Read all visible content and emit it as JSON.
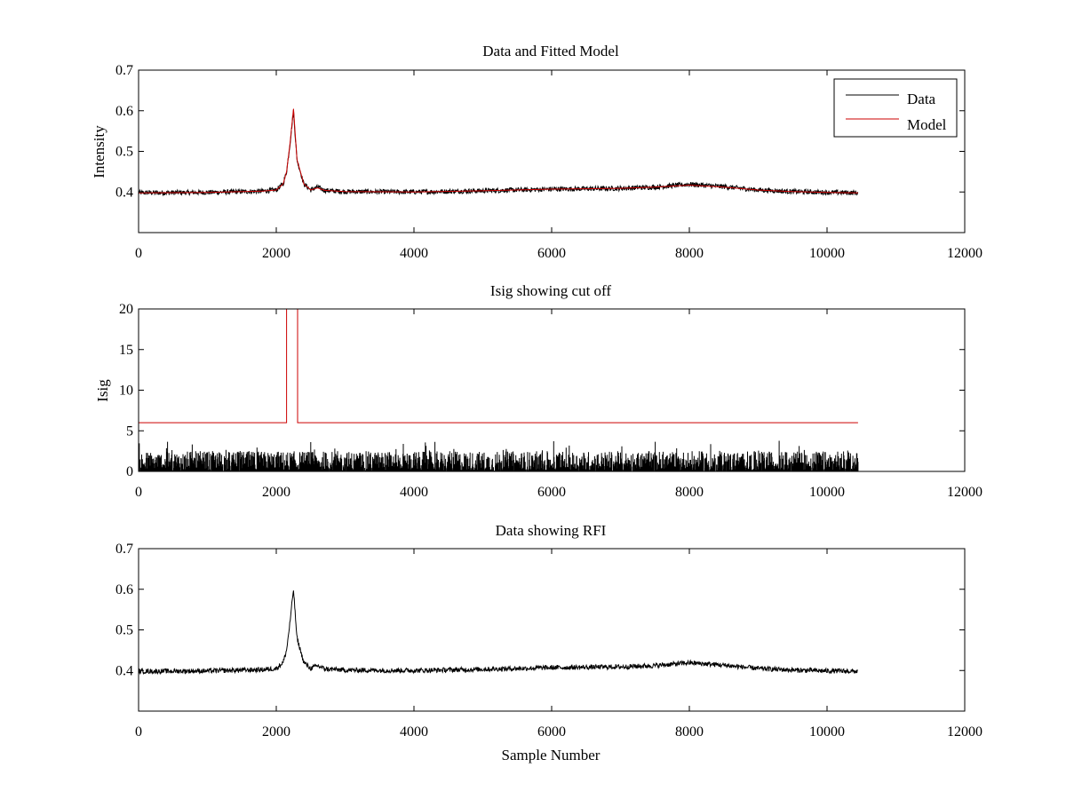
{
  "figure": {
    "background": "#ffffff",
    "colors": {
      "data": "#000000",
      "model": "#cc0000",
      "axes": "#000000"
    }
  },
  "chart_data": [
    {
      "type": "line",
      "title": "Data and Fitted Model",
      "xlabel": "",
      "ylabel": "Intensity",
      "xlim": [
        0,
        12000
      ],
      "ylim": [
        0.3,
        0.7
      ],
      "x_ticks": [
        0,
        2000,
        4000,
        6000,
        8000,
        10000,
        12000
      ],
      "y_ticks": [
        0.4,
        0.5,
        0.6,
        0.7
      ],
      "x_tick_labels": [
        "0",
        "2000",
        "4000",
        "6000",
        "8000",
        "10000",
        "12000"
      ],
      "y_tick_labels": [
        "0.4",
        "0.5",
        "0.6",
        "0.7"
      ],
      "grid": false,
      "legend": {
        "position": "top-right",
        "entries": [
          "Data",
          "Model"
        ]
      },
      "series": [
        {
          "name": "Data",
          "color": "#000000",
          "x": [
            0,
            1000,
            1800,
            2000,
            2100,
            2150,
            2200,
            2250,
            2300,
            2400,
            2500,
            2600,
            2700,
            3000,
            4000,
            5000,
            6000,
            7000,
            7500,
            8000,
            8500,
            9000,
            9500,
            10000,
            10450
          ],
          "y": [
            0.398,
            0.399,
            0.402,
            0.405,
            0.42,
            0.45,
            0.52,
            0.6,
            0.48,
            0.42,
            0.405,
            0.412,
            0.404,
            0.401,
            0.4,
            0.403,
            0.407,
            0.409,
            0.412,
            0.419,
            0.413,
            0.405,
            0.401,
            0.399,
            0.398
          ],
          "noise_amplitude": 0.006
        },
        {
          "name": "Model",
          "color": "#cc0000",
          "x": [
            0,
            1000,
            1800,
            2000,
            2100,
            2150,
            2200,
            2250,
            2300,
            2400,
            2500,
            2600,
            2700,
            3000,
            4000,
            5000,
            6000,
            7000,
            7500,
            8000,
            8500,
            9000,
            9500,
            10000,
            10450
          ],
          "y": [
            0.398,
            0.399,
            0.402,
            0.405,
            0.42,
            0.45,
            0.52,
            0.605,
            0.48,
            0.42,
            0.405,
            0.41,
            0.404,
            0.401,
            0.4,
            0.403,
            0.407,
            0.409,
            0.412,
            0.417,
            0.412,
            0.405,
            0.401,
            0.399,
            0.398
          ]
        }
      ]
    },
    {
      "type": "line",
      "title": "Isig showing cut off",
      "xlabel": "",
      "ylabel": "Isig",
      "xlim": [
        0,
        12000
      ],
      "ylim": [
        0,
        20
      ],
      "x_ticks": [
        0,
        2000,
        4000,
        6000,
        8000,
        10000,
        12000
      ],
      "y_ticks": [
        0,
        5,
        10,
        15,
        20
      ],
      "x_tick_labels": [
        "0",
        "2000",
        "4000",
        "6000",
        "8000",
        "10000",
        "12000"
      ],
      "y_tick_labels": [
        "0",
        "5",
        "10",
        "15",
        "20"
      ],
      "grid": false,
      "series": [
        {
          "color": "#cc0000",
          "x": [
            0,
            2150,
            2150,
            2310,
            2310,
            10450
          ],
          "y": [
            6,
            6,
            20,
            20,
            6,
            6
          ]
        },
        {
          "color": "#000000",
          "x_range": [
            0,
            10450
          ],
          "y_range": [
            0,
            3.8
          ],
          "typical_max": 2.5
        }
      ]
    },
    {
      "type": "line",
      "title": "Data showing RFI",
      "xlabel": "Sample Number",
      "ylabel": "",
      "xlim": [
        0,
        12000
      ],
      "ylim": [
        0.3,
        0.7
      ],
      "x_ticks": [
        0,
        2000,
        4000,
        6000,
        8000,
        10000,
        12000
      ],
      "y_ticks": [
        0.4,
        0.5,
        0.6,
        0.7
      ],
      "x_tick_labels": [
        "0",
        "2000",
        "4000",
        "6000",
        "8000",
        "10000",
        "12000"
      ],
      "y_tick_labels": [
        "0.4",
        "0.5",
        "0.6",
        "0.7"
      ],
      "grid": false,
      "series": [
        {
          "color": "#000000",
          "x": [
            0,
            1000,
            1800,
            2000,
            2100,
            2150,
            2200,
            2250,
            2300,
            2400,
            2500,
            2600,
            2700,
            3000,
            4000,
            5000,
            6000,
            7000,
            7500,
            8000,
            8500,
            9000,
            9500,
            10000,
            10450
          ],
          "y": [
            0.398,
            0.399,
            0.402,
            0.405,
            0.42,
            0.45,
            0.52,
            0.6,
            0.48,
            0.42,
            0.405,
            0.412,
            0.404,
            0.401,
            0.4,
            0.403,
            0.407,
            0.409,
            0.412,
            0.419,
            0.413,
            0.405,
            0.401,
            0.399,
            0.398
          ],
          "noise_amplitude": 0.006
        }
      ]
    }
  ]
}
